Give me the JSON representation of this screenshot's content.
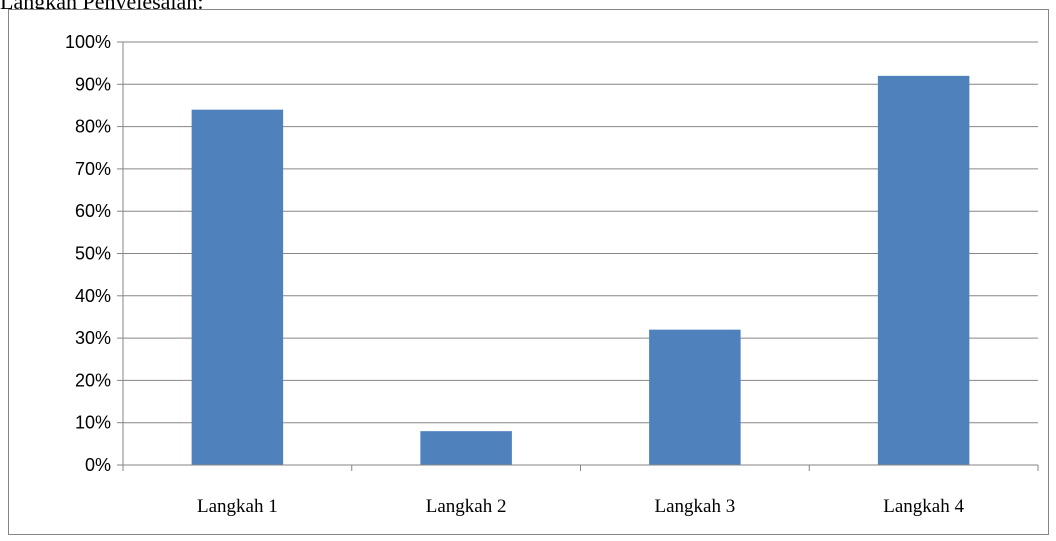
{
  "heading": "Langkah Penyelesaian:",
  "chart_data": {
    "type": "bar",
    "categories": [
      "Langkah 1",
      "Langkah 2",
      "Langkah 3",
      "Langkah 4"
    ],
    "values": [
      84,
      8,
      32,
      92
    ],
    "ylim": [
      0,
      100
    ],
    "yticks": [
      "0%",
      "10%",
      "20%",
      "30%",
      "40%",
      "50%",
      "60%",
      "70%",
      "80%",
      "90%",
      "100%"
    ],
    "grid": true,
    "legend": "none",
    "bar_color": "#4F81BD",
    "grid_color": "#868686"
  }
}
